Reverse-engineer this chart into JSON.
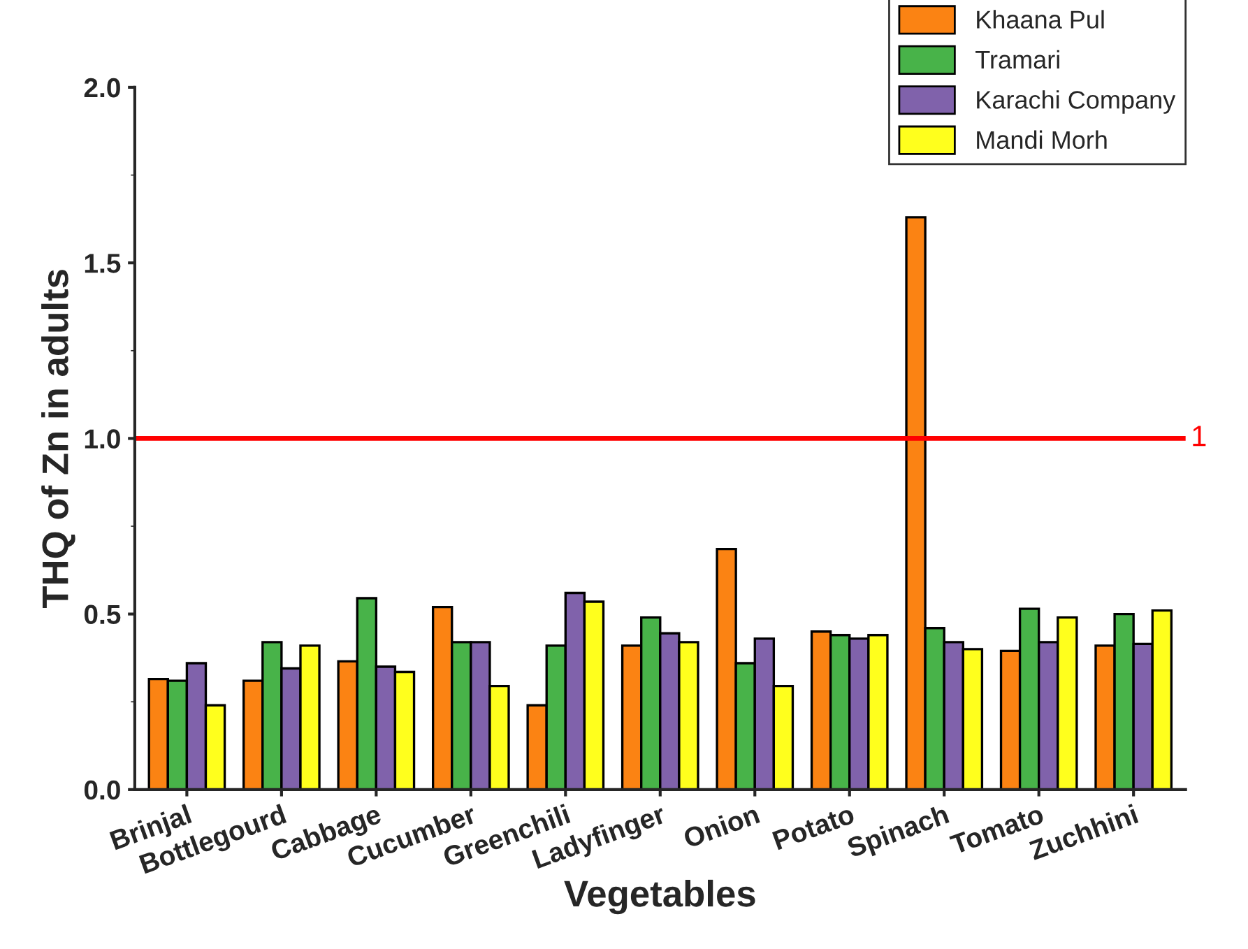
{
  "chart_data": {
    "type": "bar",
    "xlabel": "Vegetables",
    "ylabel": "THQ of Zn in adults",
    "categories": [
      "Brinjal",
      "Bottlegourd",
      "Cabbage",
      "Cucumber",
      "Greenchili",
      "Ladyfinger",
      "Onion",
      "Potato",
      "Spinach",
      "Tomato",
      "Zuchhini"
    ],
    "series": [
      {
        "name": "Khaana Pul",
        "color": "#fb8313",
        "values": [
          0.315,
          0.31,
          0.365,
          0.52,
          0.24,
          0.41,
          0.685,
          0.45,
          1.63,
          0.395,
          0.41
        ]
      },
      {
        "name": "Tramari",
        "color": "#48b349",
        "values": [
          0.31,
          0.42,
          0.545,
          0.42,
          0.41,
          0.49,
          0.36,
          0.44,
          0.46,
          0.515,
          0.5
        ]
      },
      {
        "name": "Karachi Company",
        "color": "#8062ab",
        "values": [
          0.36,
          0.345,
          0.35,
          0.42,
          0.56,
          0.445,
          0.43,
          0.43,
          0.42,
          0.42,
          0.415
        ]
      },
      {
        "name": "Mandi Morh",
        "color": "#ffff1d",
        "values": [
          0.24,
          0.41,
          0.335,
          0.295,
          0.535,
          0.42,
          0.295,
          0.44,
          0.4,
          0.49,
          0.51
        ]
      }
    ],
    "ylim": [
      0,
      2
    ],
    "yticks": [
      {
        "value": 0,
        "label": "0.0"
      },
      0.5,
      {
        "value": 1,
        "label": "1.0"
      },
      1.5,
      {
        "value": 2,
        "label": "2.0"
      }
    ],
    "ref_lines": [
      {
        "axis": "y",
        "value": 1,
        "label": "1",
        "color": "#ff0000"
      }
    ],
    "legend": "top right",
    "grid": false
  }
}
